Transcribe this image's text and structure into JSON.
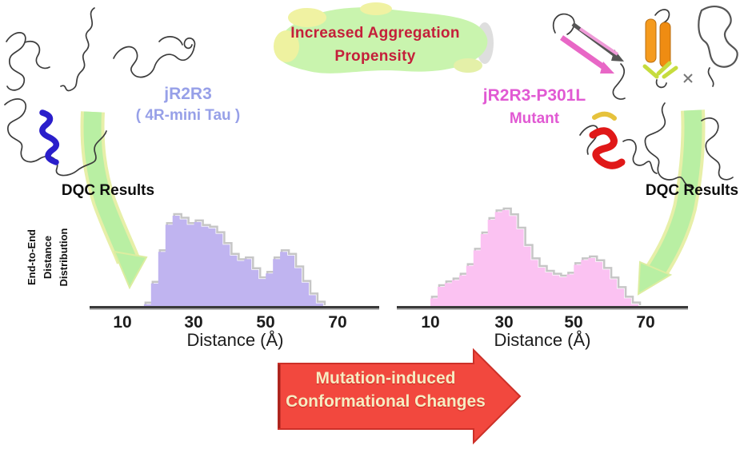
{
  "figure": {
    "kind": "scientific graphical abstract",
    "background": "#ffffff"
  },
  "banner": {
    "line1": "Increased Aggregation",
    "line2": "Propensity",
    "text_color": "#c41f3a",
    "arrow_color": "#c9f4ae"
  },
  "left_panel": {
    "title_line1": "jR2R3",
    "title_line2": "( 4R-mini Tau )",
    "title_color": "#97a0e8",
    "dqc_label": "DQC Results"
  },
  "right_panel": {
    "title_line1": "jR2R3-P301L",
    "title_line2": "Mutant",
    "title_color": "#e159d3",
    "dqc_label": "DQC Results"
  },
  "y_axis_label": {
    "line1": "End-to-End",
    "line2": "Distance",
    "line3": "Distribution"
  },
  "bottom_arrow": {
    "line1": "Mutation-induced",
    "line2": "Conformational Changes",
    "fill_color": "#f2483e",
    "text_color": "#f7ecc2"
  },
  "molecules": {
    "left": [
      "disordered-coil",
      "disordered-coil",
      "disordered-coil",
      "coil-with-blue-alpha-helix"
    ],
    "right": [
      "beta-sheet-pink-arrows",
      "beta-barrel-orange",
      "folded-coil-outline",
      "coil-with-red-helix",
      "disordered-coil"
    ],
    "blue_helix_color": "#2a1ecb",
    "pink_sheet_color": "#e867c6",
    "orange_barrel_color": "#f59b1e",
    "red_helix_color": "#e01818",
    "green_arrow_color": "#b9efa3"
  },
  "chart_data": [
    {
      "type": "area",
      "name": "jR2R3 (4R-mini Tau) end-to-end distance distribution",
      "xlabel": "Distance (Å)",
      "ylabel": "End-to-End Distance Distribution",
      "x_ticks": [
        "10",
        "30",
        "50",
        "70"
      ],
      "x_tick_values": [
        10,
        30,
        50,
        70
      ],
      "xlim": [
        0,
        80
      ],
      "bin_start": 10,
      "bin_width": 2,
      "y_units": "relative density (peak-normalized)",
      "heights": [
        0,
        0,
        0,
        0.02,
        0.25,
        0.6,
        0.9,
        1.0,
        0.96,
        0.9,
        0.93,
        0.88,
        0.86,
        0.8,
        0.68,
        0.56,
        0.5,
        0.52,
        0.4,
        0.3,
        0.36,
        0.52,
        0.6,
        0.56,
        0.42,
        0.26,
        0.12,
        0.03,
        0,
        0
      ],
      "fill_color": "#c0b4f0",
      "outline_color": "#c6c6c6",
      "notes": "bimodal: main peak ~25 Å, shoulder 30-37 Å, minimum ~49 Å, secondary peak ~55 Å, distribution spans ~18-65 Å"
    },
    {
      "type": "area",
      "name": "jR2R3-P301L Mutant end-to-end distance distribution",
      "xlabel": "Distance (Å)",
      "ylabel": "End-to-End Distance Distribution",
      "x_ticks": [
        "10",
        "30",
        "50",
        "70"
      ],
      "x_tick_values": [
        10,
        30,
        50,
        70
      ],
      "xlim": [
        0,
        80
      ],
      "bin_start": 10,
      "bin_width": 2,
      "y_units": "relative density (peak-normalized)",
      "heights": [
        0.08,
        0.2,
        0.24,
        0.27,
        0.32,
        0.42,
        0.58,
        0.75,
        0.9,
        0.98,
        1.0,
        0.94,
        0.8,
        0.62,
        0.48,
        0.4,
        0.35,
        0.32,
        0.3,
        0.33,
        0.43,
        0.48,
        0.5,
        0.46,
        0.38,
        0.28,
        0.18,
        0.08,
        0.02,
        0
      ],
      "fill_color": "#fbc2f2",
      "outline_color": "#c6c6c6",
      "notes": "broad main peak ~31 Å, minimum ~47 Å, small secondary bump ~54 Å, distribution spans ~10-67 Å"
    }
  ]
}
